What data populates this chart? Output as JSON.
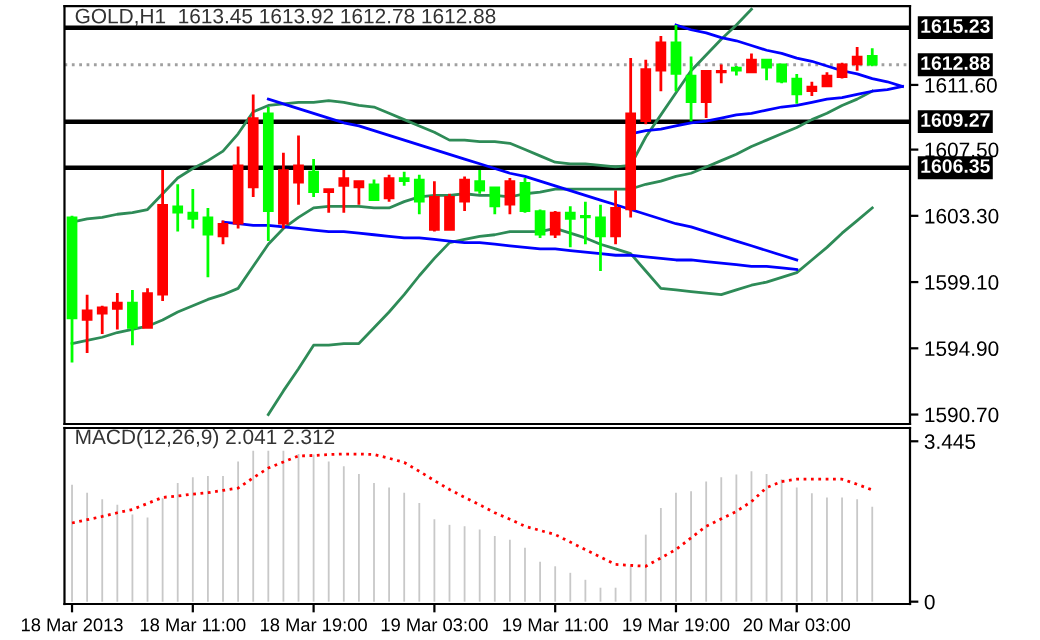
{
  "chart_data": [
    {
      "type": "candlestick",
      "title": "GOLD,H1  1613.45 1613.92 1612.78 1612.88",
      "categories": [
        null,
        null,
        null,
        null,
        null,
        null,
        null,
        null,
        null,
        null,
        null,
        null,
        null,
        null,
        null,
        null,
        null,
        null,
        null,
        null,
        null,
        null,
        null,
        null,
        null,
        null,
        null,
        null,
        null,
        null,
        null,
        null,
        null,
        null,
        null,
        null,
        null,
        null,
        null,
        null,
        null,
        null,
        null,
        null,
        null,
        null,
        null,
        null,
        null,
        null,
        null,
        null,
        null,
        null,
        null,
        null
      ],
      "ohlc": [
        [
          1603.2,
          1603.3,
          1594.0,
          1596.8
        ],
        [
          1596.7,
          1598.3,
          1594.6,
          1597.3
        ],
        [
          1597.1,
          1597.6,
          1595.8,
          1597.5
        ],
        [
          1597.4,
          1598.4,
          1596.1,
          1597.8
        ],
        [
          1597.8,
          1598.6,
          1595.1,
          1596.2
        ],
        [
          1596.2,
          1598.7,
          1596.2,
          1598.4
        ],
        [
          1598.3,
          1606.2,
          1597.9,
          1604.0
        ],
        [
          1603.9,
          1605.3,
          1602.3,
          1603.5
        ],
        [
          1603.5,
          1605.0,
          1602.5,
          1603.1
        ],
        [
          1603.2,
          1603.8,
          1599.4,
          1602.1
        ],
        [
          1602.0,
          1603.0,
          1601.5,
          1602.8
        ],
        [
          1602.8,
          1607.7,
          1602.5,
          1606.5
        ],
        [
          1605.1,
          1611.0,
          1604.5,
          1609.5
        ],
        [
          1609.8,
          1610.2,
          1601.7,
          1603.6
        ],
        [
          1602.8,
          1607.3,
          1602.5,
          1606.2
        ],
        [
          1605.4,
          1608.4,
          1604.0,
          1606.5
        ],
        [
          1606.1,
          1606.9,
          1604.5,
          1604.8
        ],
        [
          1604.8,
          1605.0,
          1603.5,
          1605.0
        ],
        [
          1605.2,
          1606.2,
          1603.5,
          1605.7
        ],
        [
          1605.1,
          1605.5,
          1604.0,
          1605.5
        ],
        [
          1605.3,
          1605.6,
          1604.3,
          1604.3
        ],
        [
          1604.4,
          1605.9,
          1604.2,
          1605.7
        ],
        [
          1605.7,
          1606.1,
          1605.2,
          1605.5
        ],
        [
          1605.6,
          1605.9,
          1603.4,
          1604.2
        ],
        [
          1602.4,
          1605.5,
          1602.3,
          1604.5
        ],
        [
          1602.4,
          1604.7,
          1602.4,
          1604.5
        ],
        [
          1604.2,
          1605.8,
          1603.6,
          1605.6
        ],
        [
          1605.5,
          1606.2,
          1604.7,
          1604.9
        ],
        [
          1605.1,
          1605.1,
          1603.4,
          1603.9
        ],
        [
          1604.0,
          1605.7,
          1603.4,
          1605.5
        ],
        [
          1605.4,
          1605.7,
          1603.5,
          1603.6
        ],
        [
          1603.6,
          1603.7,
          1601.9,
          1602.1
        ],
        [
          1602.1,
          1603.6,
          1601.9,
          1603.5
        ],
        [
          1603.5,
          1603.9,
          1601.3,
          1603.1
        ],
        [
          1603.3,
          1604.2,
          1601.5,
          1603.2
        ],
        [
          1603.2,
          1604.0,
          1599.8,
          1602.0
        ],
        [
          1602.0,
          1604.9,
          1601.5,
          1603.8
        ],
        [
          1603.7,
          1613.3,
          1603.2,
          1609.8
        ],
        [
          1609.3,
          1613.2,
          1609.1,
          1612.6
        ],
        [
          1612.5,
          1614.7,
          1611.2,
          1614.3
        ],
        [
          1614.3,
          1615.4,
          1611.2,
          1612.3
        ],
        [
          1612.2,
          1613.4,
          1609.3,
          1610.5
        ],
        [
          1610.5,
          1612.5,
          1609.5,
          1612.5
        ],
        [
          1612.4,
          1612.9,
          1611.7,
          1612.5
        ],
        [
          1612.7,
          1612.8,
          1612.2,
          1612.5
        ],
        [
          1612.4,
          1613.6,
          1612.4,
          1613.2
        ],
        [
          1613.2,
          1613.2,
          1611.9,
          1612.7
        ],
        [
          1612.9,
          1612.9,
          1611.7,
          1611.8
        ],
        [
          1612.0,
          1612.3,
          1610.4,
          1611.0
        ],
        [
          1611.2,
          1611.8,
          1610.9,
          1611.5
        ],
        [
          1611.5,
          1612.4,
          1611.5,
          1612.2
        ],
        [
          1612.1,
          1613.0,
          1612.0,
          1612.9
        ],
        [
          1612.9,
          1614.0,
          1612.5,
          1613.4
        ],
        [
          1613.45,
          1613.92,
          1612.78,
          1612.88
        ],
        null,
        null
      ],
      "colors": [
        "#00ff00",
        "#ff0000",
        "#ff0000",
        "#ff0000",
        "#00ff00",
        "#ff0000",
        "#ff0000",
        "#00ff00",
        "#00ff00",
        "#00ff00",
        "#ff0000",
        "#ff0000",
        "#ff0000",
        "#00ff00",
        "#ff0000",
        "#ff0000",
        "#00ff00",
        "#ff0000",
        "#ff0000",
        "#ff0000",
        "#00ff00",
        "#ff0000",
        "#00ff00",
        "#00ff00",
        "#ff0000",
        "#ff0000",
        "#ff0000",
        "#00ff00",
        "#00ff00",
        "#ff0000",
        "#00ff00",
        "#00ff00",
        "#ff0000",
        "#00ff00",
        "#00ff00",
        "#00ff00",
        "#ff0000",
        "#ff0000",
        "#ff0000",
        "#ff0000",
        "#00ff00",
        "#00ff00",
        "#ff0000",
        "#ff0000",
        "#00ff00",
        "#ff0000",
        "#00ff00",
        "#00ff00",
        "#00ff00",
        "#ff0000",
        "#ff0000",
        "#ff0000",
        "#ff0000",
        "#00ff00",
        null,
        null
      ],
      "series": [
        {
          "type": "line",
          "color": "#2e8b57",
          "values": [
            1602.9,
            1603.1,
            1603.2,
            1603.4,
            1603.5,
            1603.7,
            1604.7,
            1605.7,
            1606.3,
            1606.8,
            1607.4,
            1608.5,
            1609.9,
            1610.3,
            1610.4,
            1610.5,
            1610.5,
            1610.6,
            1610.5,
            1610.3,
            1610.2,
            1609.8,
            1609.4,
            1609.0,
            1608.6,
            1608.1,
            1608.1,
            1608.0,
            1608.0,
            1607.9,
            1607.5,
            1607.1,
            1606.7,
            1606.6,
            1606.6,
            1606.5,
            1606.4,
            1606.5,
            1608.3,
            1609.7,
            1611.1,
            1612.5,
            1613.5,
            1614.5,
            1615.4,
            1616.4,
            null,
            null,
            null,
            null,
            null,
            null,
            null,
            null,
            null,
            null
          ]
        },
        {
          "type": "line",
          "color": "#2e8b57",
          "values": [
            1595.2,
            1595.4,
            1595.6,
            1595.9,
            1596.1,
            1596.3,
            1596.7,
            1597.2,
            1597.6,
            1598.0,
            1598.3,
            1598.7,
            1600.1,
            1601.5,
            1602.5,
            1603.2,
            1603.8,
            1603.9,
            1603.9,
            1603.9,
            1603.8,
            1603.8,
            1604.2,
            1604.5,
            1604.6,
            1604.6,
            1604.7,
            1604.6,
            1604.6,
            1604.5,
            1604.7,
            1604.8,
            1605.0,
            1605.0,
            1605.0,
            1605.0,
            1605.0,
            1605.0,
            1605.3,
            1605.5,
            1605.8,
            1606.0,
            1606.4,
            1606.8,
            1607.2,
            1607.7,
            1608.1,
            1608.5,
            1608.9,
            1609.4,
            1609.8,
            1610.3,
            1610.7,
            1611.2,
            null,
            null
          ]
        },
        {
          "type": "line",
          "color": "#2e8b57",
          "values": [
            null,
            null,
            null,
            null,
            null,
            null,
            null,
            null,
            null,
            null,
            null,
            null,
            null,
            1590.7,
            1592.2,
            1593.6,
            1595.1,
            1595.1,
            1595.2,
            1595.2,
            1596.2,
            1597.2,
            1598.3,
            1599.5,
            1600.6,
            1601.6,
            1601.8,
            1602.0,
            1602.1,
            1602.3,
            1602.3,
            1602.3,
            1602.5,
            1602.2,
            1601.9,
            1601.5,
            1601.2,
            1600.9,
            1599.8,
            1598.7,
            1598.6,
            1598.5,
            1598.4,
            1598.3,
            1598.6,
            1598.9,
            1599.1,
            1599.4,
            1599.7,
            1600.5,
            1601.3,
            1602.2,
            1603.0,
            1603.8,
            null,
            null
          ]
        },
        {
          "type": "line",
          "color": "#0000ff",
          "values": [
            null,
            null,
            null,
            null,
            null,
            null,
            null,
            null,
            null,
            null,
            null,
            null,
            null,
            1610.7,
            1610.4,
            1610.1,
            1609.8,
            1609.5,
            1609.2,
            1609.0,
            1608.7,
            1608.4,
            1608.1,
            1607.8,
            1607.5,
            1607.2,
            1606.9,
            1606.6,
            1606.3,
            1606.0,
            1605.8,
            1605.5,
            1605.2,
            1604.9,
            1604.6,
            1604.3,
            1604.0,
            1603.7,
            1603.4,
            1603.1,
            1602.8,
            1602.6,
            1602.3,
            1602.0,
            1601.7,
            1601.4,
            1601.1,
            1600.8,
            1600.5,
            null,
            null,
            null,
            null,
            null,
            null,
            null
          ]
        },
        {
          "type": "line",
          "color": "#0000ff",
          "values": [
            null,
            null,
            null,
            null,
            null,
            null,
            null,
            null,
            null,
            null,
            1602.9,
            1602.8,
            1602.7,
            1602.7,
            1602.6,
            1602.5,
            1602.4,
            1602.3,
            1602.3,
            1602.2,
            1602.1,
            1602.0,
            1601.9,
            1601.9,
            1601.8,
            1601.7,
            1601.6,
            1601.6,
            1601.5,
            1601.4,
            1601.3,
            1601.2,
            1601.2,
            1601.1,
            1601.0,
            1600.9,
            1600.8,
            1600.8,
            1600.7,
            1600.6,
            1600.5,
            1600.5,
            1600.4,
            1600.3,
            1600.2,
            1600.1,
            1600.1,
            1600.0,
            1599.9,
            null,
            null,
            null,
            null,
            null,
            null,
            null
          ]
        },
        {
          "type": "line",
          "color": "#0000ff",
          "values": [
            null,
            null,
            null,
            null,
            null,
            null,
            null,
            null,
            null,
            null,
            null,
            null,
            null,
            null,
            null,
            null,
            null,
            null,
            null,
            null,
            null,
            null,
            null,
            null,
            null,
            null,
            null,
            null,
            null,
            null,
            null,
            null,
            null,
            null,
            null,
            null,
            null,
            null,
            null,
            null,
            1615.4,
            1615.1,
            1614.9,
            1614.6,
            1614.4,
            1614.1,
            1613.8,
            1613.6,
            1613.3,
            1613.1,
            1612.8,
            1612.5,
            1612.3,
            1612.0,
            1611.8,
            1611.5
          ]
        },
        {
          "type": "line",
          "color": "#0000ff",
          "values": [
            null,
            null,
            null,
            null,
            null,
            null,
            null,
            null,
            null,
            null,
            null,
            null,
            null,
            null,
            null,
            null,
            null,
            null,
            null,
            null,
            null,
            null,
            null,
            null,
            null,
            null,
            null,
            null,
            null,
            null,
            null,
            null,
            null,
            null,
            null,
            null,
            null,
            1608.5,
            1608.7,
            1608.8,
            1609.0,
            1609.2,
            1609.3,
            1609.5,
            1609.7,
            1609.8,
            1610.0,
            1610.2,
            1610.3,
            1610.5,
            1610.7,
            1610.8,
            1611.0,
            1611.2,
            1611.3,
            1611.5
          ]
        }
      ],
      "ref_lines": [
        {
          "axis": "y",
          "value": 1615.23,
          "label": "1615.23",
          "color": "#000000",
          "line_style": "solid"
        },
        {
          "axis": "y",
          "value": 1612.88,
          "label": "1612.88",
          "color": "#a0a0a0",
          "line_style": "dotted"
        },
        {
          "axis": "y",
          "value": 1609.27,
          "label": "1609.27",
          "color": "#000000",
          "line_style": "solid"
        },
        {
          "axis": "y",
          "value": 1606.35,
          "label": "1606.35",
          "color": "#000000",
          "line_style": "solid"
        }
      ],
      "ylim": [
        1590.1,
        1616.6
      ],
      "yticks": [
        {
          "value": 1590.7,
          "label": "1590.70"
        },
        {
          "value": 1594.9,
          "label": "1594.90"
        },
        {
          "value": 1599.1,
          "label": "1599.10"
        },
        {
          "value": 1603.3,
          "label": "1603.30"
        },
        {
          "value": 1607.5,
          "label": "1607.50"
        },
        {
          "value": 1611.6,
          "label": "1611.60"
        }
      ],
      "tick_labels": "y"
    },
    {
      "type": "bar",
      "title": "MACD(12,26,9) 2.041 2.312",
      "categories": [
        "18 Mar 2013",
        null,
        null,
        null,
        null,
        null,
        null,
        null,
        "18 Mar 11:00",
        null,
        null,
        null,
        null,
        null,
        null,
        null,
        "18 Mar 19:00",
        null,
        null,
        null,
        null,
        null,
        null,
        null,
        "19 Mar 03:00",
        null,
        null,
        null,
        null,
        null,
        null,
        null,
        "19 Mar 11:00",
        null,
        null,
        null,
        null,
        null,
        null,
        null,
        "19 Mar 19:00",
        null,
        null,
        null,
        null,
        null,
        null,
        null,
        "20 Mar 03:00",
        null,
        null,
        null,
        null,
        null,
        null,
        null
      ],
      "series": [
        {
          "type": "bar",
          "color": "#c8c8c8",
          "values": [
            2.51,
            2.34,
            2.2,
            2.08,
            1.87,
            1.81,
            2.22,
            2.55,
            2.67,
            2.7,
            2.7,
            3.01,
            3.24,
            3.24,
            3.24,
            3.17,
            3.16,
            3.01,
            2.91,
            2.74,
            2.55,
            2.45,
            2.34,
            2.12,
            1.77,
            1.65,
            1.62,
            1.55,
            1.41,
            1.33,
            1.16,
            0.86,
            0.76,
            0.62,
            0.47,
            0.3,
            0.3,
            0.76,
            1.44,
            2.01,
            2.34,
            2.37,
            2.58,
            2.67,
            2.73,
            2.8,
            2.74,
            2.63,
            2.45,
            2.33,
            2.24,
            2.24,
            2.2,
            2.04,
            null,
            null
          ]
        },
        {
          "type": "line",
          "color": "#ff0000",
          "line_style": "dotted",
          "values": [
            1.69,
            1.76,
            1.83,
            1.91,
            1.98,
            2.11,
            2.24,
            2.27,
            2.31,
            2.34,
            2.39,
            2.44,
            2.66,
            2.87,
            3.0,
            3.13,
            3.14,
            3.16,
            3.17,
            3.17,
            3.16,
            3.08,
            2.99,
            2.8,
            2.6,
            2.41,
            2.24,
            2.08,
            1.91,
            1.77,
            1.62,
            1.53,
            1.44,
            1.28,
            1.12,
            0.96,
            0.8,
            0.78,
            0.76,
            0.94,
            1.12,
            1.37,
            1.62,
            1.78,
            1.94,
            2.15,
            2.45,
            2.58,
            2.63,
            2.63,
            2.63,
            2.63,
            2.52,
            2.4,
            null,
            null
          ]
        }
      ],
      "ylim": [
        -0.05,
        3.73
      ],
      "yticks": [
        0,
        3.445
      ]
    }
  ]
}
